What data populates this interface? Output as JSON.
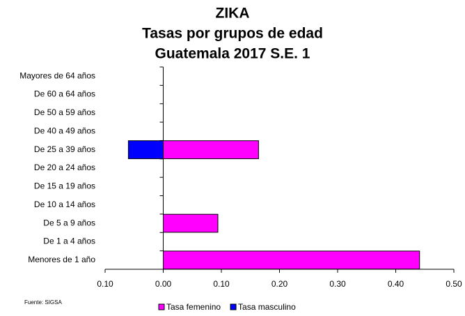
{
  "chart_data": {
    "type": "bar",
    "orientation": "horizontal",
    "title": [
      "ZIKA",
      "Tasas por grupos de edad",
      "Guatemala  2017 S.E. 1"
    ],
    "source": "Fuente: SIGSA",
    "categories": [
      "Menores de 1 año",
      "De 1 a 4 años",
      "De 5 a 9 años",
      "De 10 a 14 años",
      "De 15 a 19 años",
      "De 20 a 24 años",
      "De 25 a 39 años",
      "De 40 a 49 años",
      "De 50 a 59 años",
      "De 60 a 64 años",
      "Mayores de 64 años"
    ],
    "series": [
      {
        "name": "Tasa femenino",
        "color": "#ff00ff",
        "values": [
          0.441,
          0,
          0.094,
          0,
          0,
          0,
          0.164,
          0,
          0,
          0,
          0
        ]
      },
      {
        "name": "Tasa masculino",
        "color": "#0000ff",
        "values": [
          0,
          0,
          0,
          0,
          0,
          0,
          -0.06,
          0,
          0,
          0,
          0
        ]
      }
    ],
    "xlim": [
      -0.1,
      0.5
    ],
    "xticks": [
      {
        "value": -0.1,
        "label": "0.10"
      },
      {
        "value": 0,
        "label": "0.00"
      },
      {
        "value": 0.1,
        "label": "0.10"
      },
      {
        "value": 0.2,
        "label": "0.20"
      },
      {
        "value": 0.3,
        "label": "0.30"
      },
      {
        "value": 0.4,
        "label": "0.40"
      },
      {
        "value": 0.5,
        "label": "0.50"
      }
    ],
    "grid": false,
    "legend": "bottom"
  }
}
